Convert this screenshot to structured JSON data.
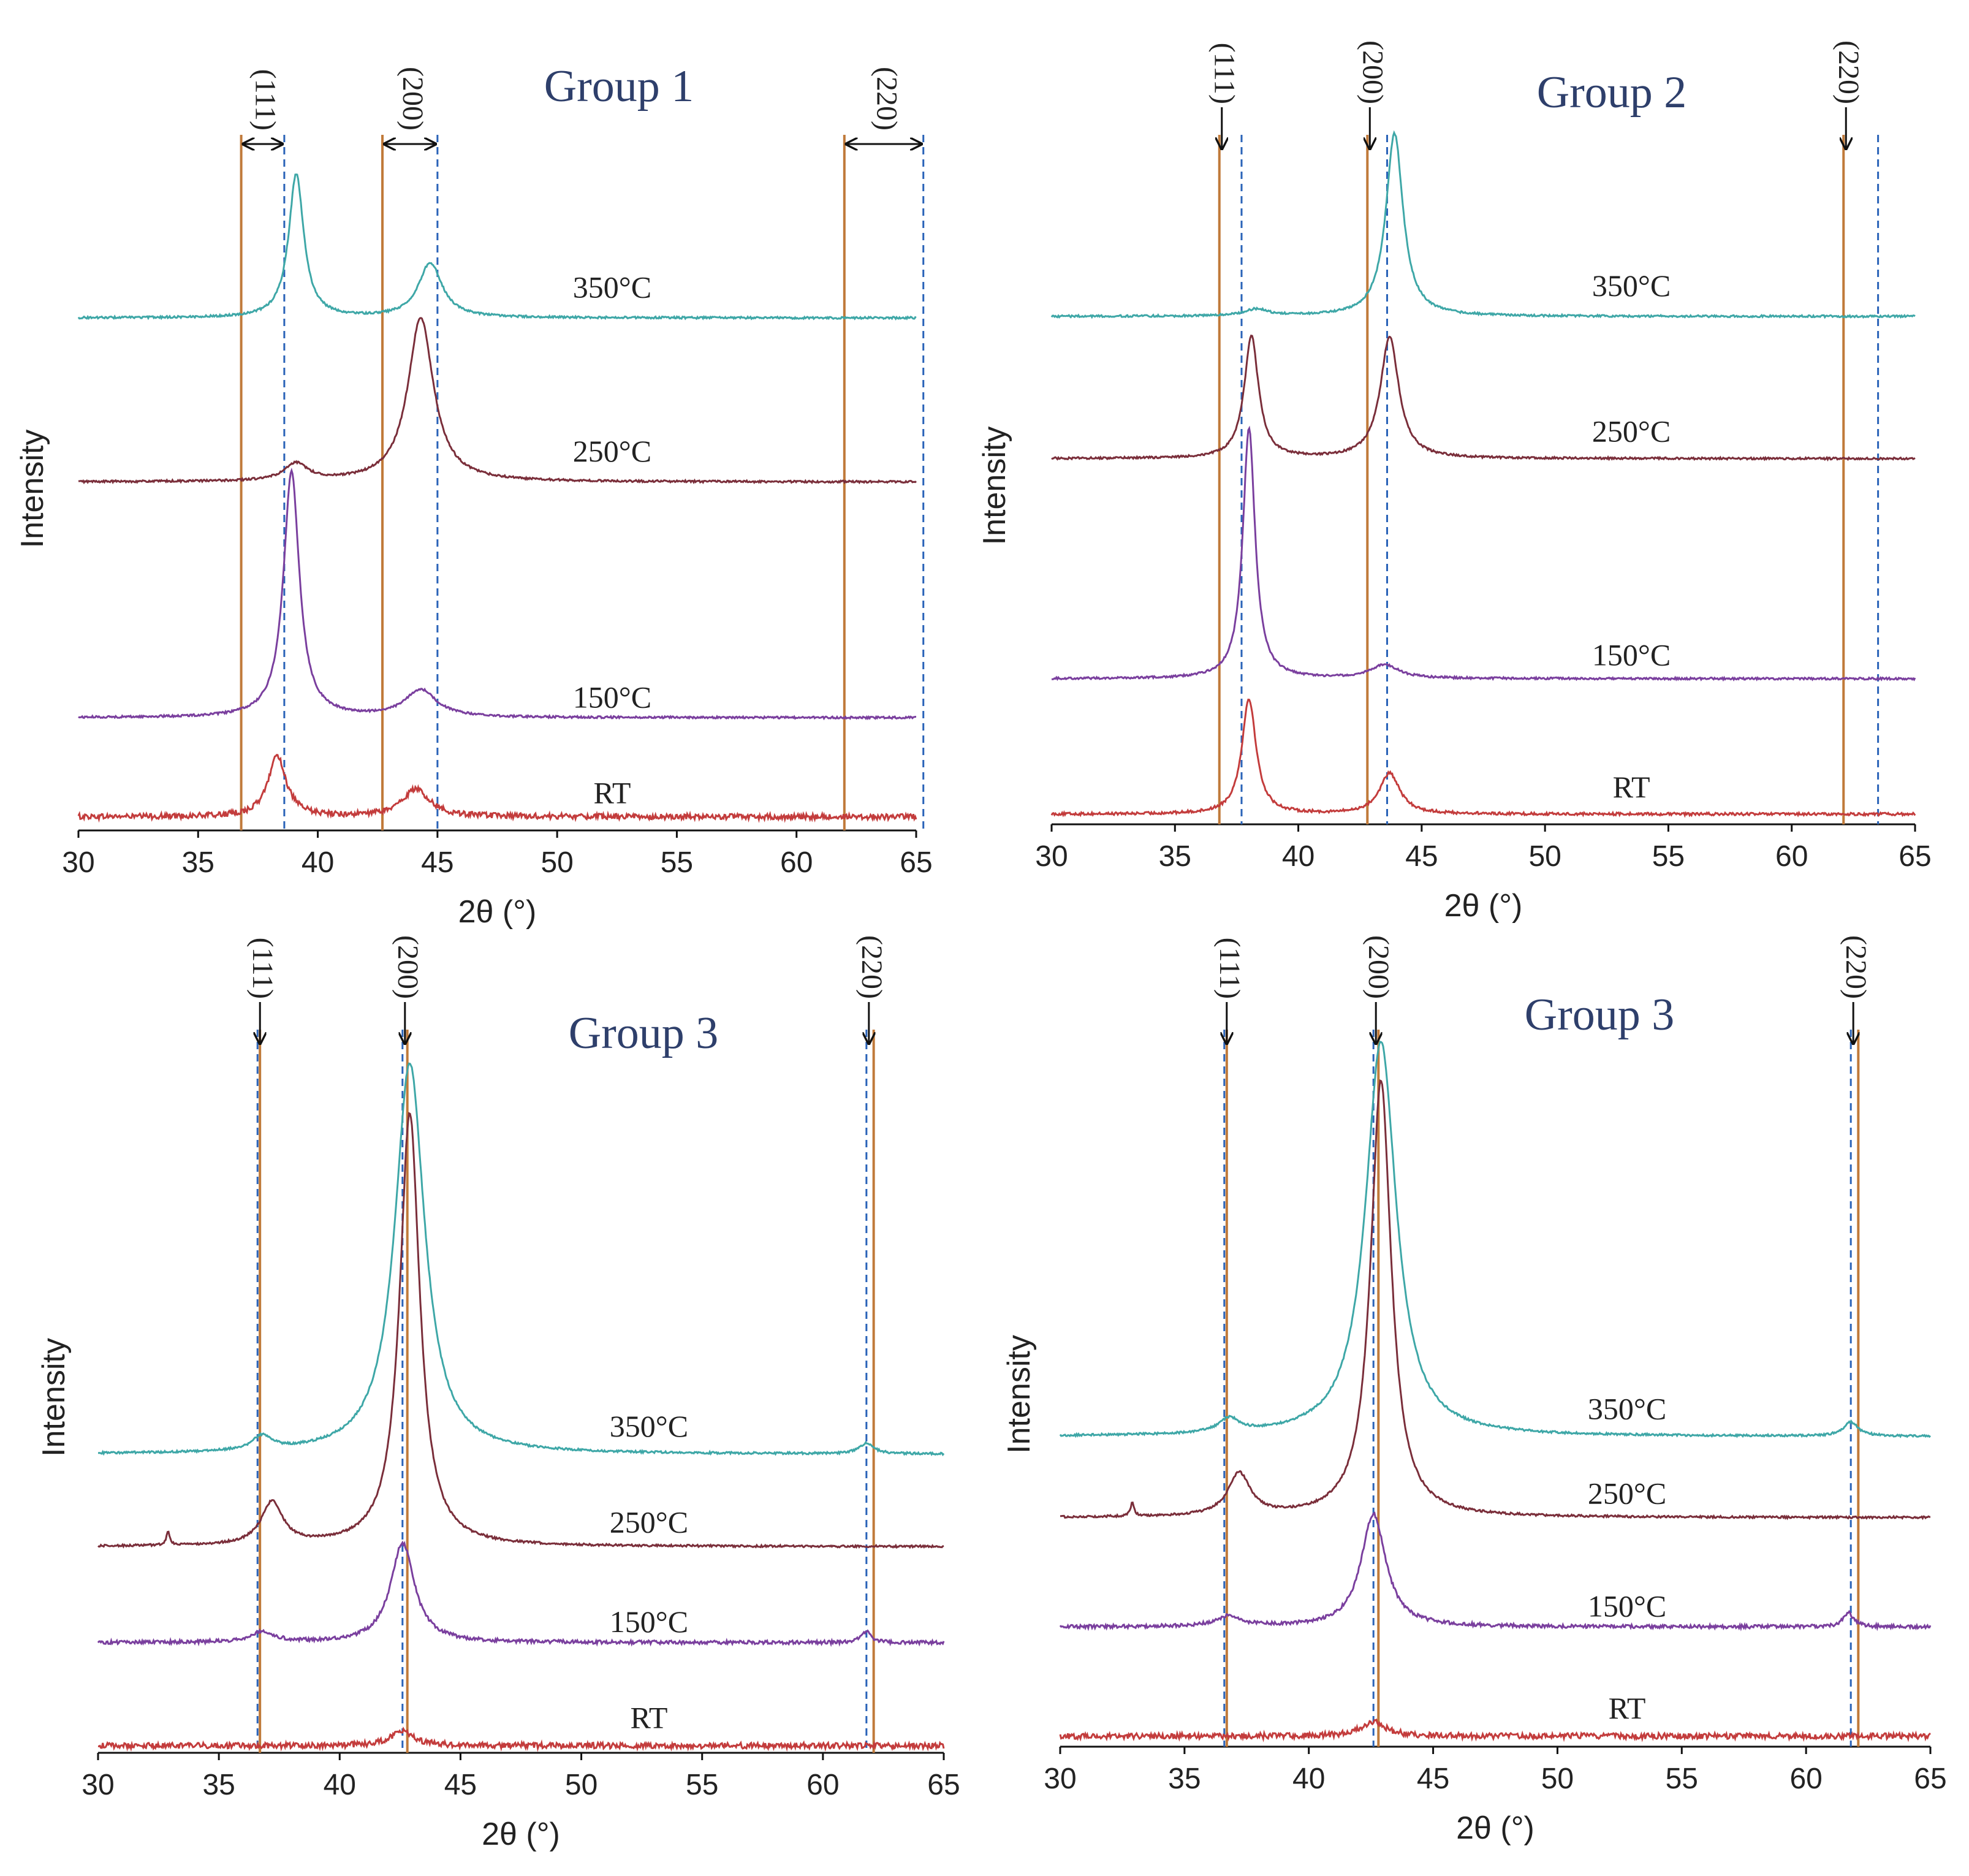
{
  "colors": {
    "RT": "#c33c3c",
    "150": "#7a3f9e",
    "250": "#7a2e3a",
    "350": "#3ea7a7",
    "solid_line": "#c07a3a",
    "dashed_line": "#2a63b8",
    "title": "#2e3f6b"
  },
  "chart_data": [
    {
      "type": "line",
      "title": "Group 1",
      "xlabel": "2θ (°)",
      "ylabel": "Intensity",
      "xlim": [
        30,
        65
      ],
      "xticks": [
        30,
        35,
        40,
        45,
        50,
        55,
        60,
        65
      ],
      "xtick_labels": [
        "30",
        "35",
        "40",
        "45",
        "50",
        "55",
        "60",
        "65"
      ],
      "ylim": [
        0,
        1
      ],
      "hkl_style": "shift",
      "hkl": [
        {
          "label": "(111)",
          "solid": 36.8,
          "dashed": 38.6
        },
        {
          "label": "(200)",
          "solid": 42.7,
          "dashed": 45.0
        },
        {
          "label": "(220)",
          "solid": 62.0,
          "dashed": 65.3
        }
      ],
      "series": [
        {
          "name": "RT",
          "label": "RT",
          "color_key": "RT",
          "baseline": 0.02,
          "label_x": 52.3,
          "label_y": 0.04,
          "noise": 0.004,
          "peaks": [
            {
              "x": 38.3,
              "h": 0.09,
              "w": 0.45
            },
            {
              "x": 44.1,
              "h": 0.04,
              "w": 0.7
            }
          ]
        },
        {
          "name": "150°C",
          "label": "150°C",
          "color_key": "150",
          "baseline": 0.165,
          "label_x": 52.3,
          "label_y": 0.18,
          "noise": 0.0015,
          "peaks": [
            {
              "x": 38.9,
              "h": 0.36,
              "w": 0.4
            },
            {
              "x": 44.3,
              "h": 0.04,
              "w": 0.8
            }
          ]
        },
        {
          "name": "250°C",
          "label": "250°C",
          "color_key": "250",
          "baseline": 0.51,
          "label_x": 52.3,
          "label_y": 0.54,
          "noise": 0.0015,
          "peaks": [
            {
              "x": 39.1,
              "h": 0.025,
              "w": 0.6
            },
            {
              "x": 44.3,
              "h": 0.24,
              "w": 0.65
            }
          ]
        },
        {
          "name": "350°C",
          "label": "350°C",
          "color_key": "350",
          "baseline": 0.75,
          "label_x": 52.3,
          "label_y": 0.78,
          "noise": 0.0015,
          "peaks": [
            {
              "x": 39.1,
              "h": 0.21,
              "w": 0.38
            },
            {
              "x": 44.7,
              "h": 0.08,
              "w": 0.6
            }
          ]
        }
      ]
    },
    {
      "type": "line",
      "title": "Group 2",
      "xlabel": "2θ (°)",
      "ylabel": "Intensity",
      "xlim": [
        30,
        65
      ],
      "xticks": [
        30,
        35,
        40,
        45,
        50,
        55,
        60,
        65
      ],
      "xtick_labels": [
        "30",
        "35",
        "40",
        "45",
        "50",
        "55",
        "60",
        "65"
      ],
      "ylim": [
        0,
        1
      ],
      "hkl_style": "arrow",
      "hkl": [
        {
          "label": "(111)",
          "solid": 36.8,
          "dashed": 37.7
        },
        {
          "label": "(200)",
          "solid": 42.8,
          "dashed": 43.6
        },
        {
          "label": "(220)",
          "solid": 62.1,
          "dashed": 63.5
        }
      ],
      "series": [
        {
          "name": "RT",
          "label": "RT",
          "color_key": "RT",
          "baseline": 0.015,
          "label_x": 53.5,
          "label_y": 0.04,
          "noise": 0.002,
          "peaks": [
            {
              "x": 38.0,
              "h": 0.17,
              "w": 0.35
            },
            {
              "x": 43.7,
              "h": 0.06,
              "w": 0.5
            }
          ]
        },
        {
          "name": "150°C",
          "label": "150°C",
          "color_key": "150",
          "baseline": 0.215,
          "label_x": 53.5,
          "label_y": 0.235,
          "noise": 0.0015,
          "peaks": [
            {
              "x": 38.0,
              "h": 0.37,
              "w": 0.3
            },
            {
              "x": 43.5,
              "h": 0.02,
              "w": 0.7
            }
          ]
        },
        {
          "name": "250°C",
          "label": "250°C",
          "color_key": "250",
          "baseline": 0.54,
          "label_x": 53.5,
          "label_y": 0.565,
          "noise": 0.0015,
          "peaks": [
            {
              "x": 38.1,
              "h": 0.18,
              "w": 0.35
            },
            {
              "x": 43.7,
              "h": 0.18,
              "w": 0.45
            }
          ]
        },
        {
          "name": "350°C",
          "label": "350°C",
          "color_key": "350",
          "baseline": 0.75,
          "label_x": 53.5,
          "label_y": 0.78,
          "noise": 0.0015,
          "peaks": [
            {
              "x": 38.3,
              "h": 0.01,
              "w": 0.6
            },
            {
              "x": 43.9,
              "h": 0.27,
              "w": 0.42
            }
          ]
        }
      ]
    },
    {
      "type": "line",
      "title": "Group 3",
      "xlabel": "2θ (°)",
      "ylabel": "Intensity",
      "xlim": [
        30,
        65
      ],
      "xticks": [
        30,
        35,
        40,
        45,
        50,
        55,
        60,
        65
      ],
      "xtick_labels": [
        "30",
        "35",
        "40",
        "45",
        "50",
        "55",
        "60",
        "65"
      ],
      "ylim": [
        0,
        1
      ],
      "hkl_style": "arrow",
      "hkl": [
        {
          "label": "(111)",
          "solid": 36.7,
          "dashed": 36.6
        },
        {
          "label": "(200)",
          "solid": 42.8,
          "dashed": 42.6
        },
        {
          "label": "(220)",
          "solid": 62.1,
          "dashed": 61.8
        }
      ],
      "series": [
        {
          "name": "RT",
          "label": "RT",
          "color_key": "RT",
          "baseline": 0.01,
          "label_x": 52.8,
          "label_y": 0.035,
          "noise": 0.004,
          "peaks": [
            {
              "x": 42.6,
              "h": 0.02,
              "w": 0.6
            }
          ]
        },
        {
          "name": "150°C",
          "label": "150°C",
          "color_key": "150",
          "baseline": 0.155,
          "label_x": 52.8,
          "label_y": 0.17,
          "noise": 0.0025,
          "peaks": [
            {
              "x": 36.8,
              "h": 0.015,
              "w": 0.6
            },
            {
              "x": 42.6,
              "h": 0.14,
              "w": 0.6
            },
            {
              "x": 61.8,
              "h": 0.015,
              "w": 0.25
            }
          ]
        },
        {
          "name": "250°C",
          "label": "250°C",
          "color_key": "250",
          "baseline": 0.29,
          "label_x": 52.8,
          "label_y": 0.31,
          "noise": 0.0015,
          "peaks": [
            {
              "x": 37.2,
              "h": 0.06,
              "w": 0.55
            },
            {
              "x": 42.9,
              "h": 0.61,
              "w": 0.5
            },
            {
              "x": 32.9,
              "h": 0.02,
              "w": 0.08
            }
          ]
        },
        {
          "name": "350°C",
          "label": "350°C",
          "color_key": "350",
          "baseline": 0.42,
          "label_x": 52.8,
          "label_y": 0.445,
          "noise": 0.0015,
          "peaks": [
            {
              "x": 36.8,
              "h": 0.02,
              "w": 0.5
            },
            {
              "x": 42.9,
              "h": 0.55,
              "w": 0.75
            },
            {
              "x": 61.8,
              "h": 0.015,
              "w": 0.35
            }
          ]
        }
      ]
    },
    {
      "type": "line",
      "title": "Group 3",
      "xlabel": "2θ (°)",
      "ylabel": "Intensity",
      "xlim": [
        30,
        65
      ],
      "xticks": [
        30,
        35,
        40,
        45,
        50,
        55,
        60,
        65
      ],
      "xtick_labels": [
        "30",
        "35",
        "40",
        "45",
        "50",
        "55",
        "60",
        "65"
      ],
      "ylim": [
        0,
        1
      ],
      "hkl_style": "arrow",
      "hkl": [
        {
          "label": "(111)",
          "solid": 36.7,
          "dashed": 36.6
        },
        {
          "label": "(200)",
          "solid": 42.8,
          "dashed": 42.6
        },
        {
          "label": "(220)",
          "solid": 62.1,
          "dashed": 61.8
        }
      ],
      "series": [
        {
          "name": "RT",
          "label": "RT",
          "color_key": "RT",
          "baseline": 0.015,
          "label_x": 52.8,
          "label_y": 0.04,
          "noise": 0.004,
          "peaks": [
            {
              "x": 42.6,
              "h": 0.02,
              "w": 0.6
            }
          ]
        },
        {
          "name": "150°C",
          "label": "150°C",
          "color_key": "150",
          "baseline": 0.17,
          "label_x": 52.8,
          "label_y": 0.185,
          "noise": 0.0025,
          "peaks": [
            {
              "x": 36.8,
              "h": 0.015,
              "w": 0.6
            },
            {
              "x": 42.6,
              "h": 0.16,
              "w": 0.6
            },
            {
              "x": 61.7,
              "h": 0.02,
              "w": 0.25
            }
          ]
        },
        {
          "name": "250°C",
          "label": "250°C",
          "color_key": "250",
          "baseline": 0.325,
          "label_x": 52.8,
          "label_y": 0.345,
          "noise": 0.0015,
          "peaks": [
            {
              "x": 37.2,
              "h": 0.06,
              "w": 0.55
            },
            {
              "x": 42.9,
              "h": 0.62,
              "w": 0.5
            },
            {
              "x": 32.9,
              "h": 0.02,
              "w": 0.08
            }
          ]
        },
        {
          "name": "350°C",
          "label": "350°C",
          "color_key": "350",
          "baseline": 0.44,
          "label_x": 52.8,
          "label_y": 0.465,
          "noise": 0.0015,
          "peaks": [
            {
              "x": 36.8,
              "h": 0.02,
              "w": 0.5
            },
            {
              "x": 42.9,
              "h": 0.56,
              "w": 0.75
            },
            {
              "x": 61.8,
              "h": 0.02,
              "w": 0.35
            }
          ]
        }
      ]
    }
  ]
}
